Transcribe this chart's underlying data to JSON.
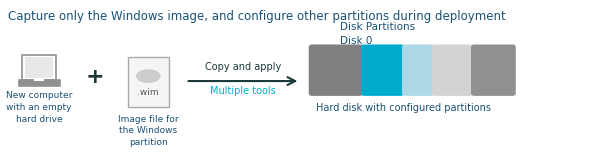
{
  "title": "Capture only the Windows image, and configure other partitions during deployment",
  "title_color": "#1a5276",
  "title_fontsize": 8.5,
  "bg_color": "#ffffff",
  "label_color": "#1a5276",
  "arrow_label": "Copy and apply",
  "arrow_sublabel": "Multiple tools",
  "arrow_sublabel_color": "#00b0c8",
  "arrow_color": "#1a3a3a",
  "disk_label": "Disk Partitions\nDisk 0",
  "partition_colors": [
    "#808080",
    "#00aacc",
    "#add8e6",
    "#d3d3d3",
    "#909090"
  ],
  "partition_label": "Hard disk with configured partitions",
  "computer_label": "New computer\nwith an empty\nhard drive",
  "wim_label": "Image file for\nthe Windows\npartition",
  "plus_color": "#1a3a3a",
  "icon_color": "#909090",
  "wim_border_color": "#aaaaaa",
  "wim_bg_color": "#f5f5f5",
  "wim_blob_color": "#cccccc",
  "wim_text_color": "#555555"
}
